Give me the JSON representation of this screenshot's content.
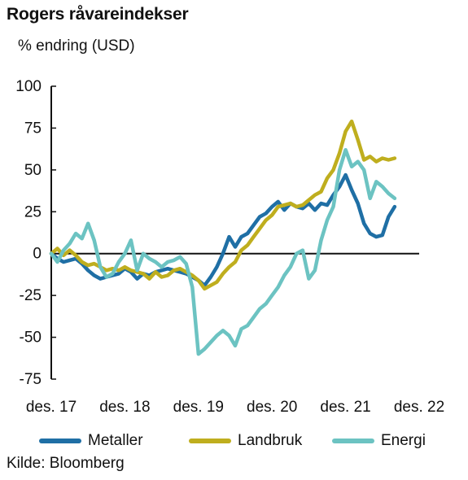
{
  "title": "Rogers råvareindekser",
  "unit_label": "% endring (USD)",
  "source": "Kilde: Bloomberg",
  "chart_data": {
    "type": "line",
    "title": "Rogers råvareindekser",
    "ylabel": "% endring (USD)",
    "xlabel": "",
    "ylim": [
      -75,
      100
    ],
    "yticks": [
      100,
      75,
      50,
      25,
      0,
      -25,
      -50,
      -75
    ],
    "xlim": [
      0,
      60
    ],
    "xticks": [
      {
        "x": 0,
        "label": "des. 17"
      },
      {
        "x": 12,
        "label": "des. 18"
      },
      {
        "x": 24,
        "label": "des. 19"
      },
      {
        "x": 36,
        "label": "des. 20"
      },
      {
        "x": 48,
        "label": "des. 21"
      },
      {
        "x": 60,
        "label": "des. 22"
      }
    ],
    "grid": false,
    "legend_position": "bottom",
    "series": [
      {
        "name": "Metaller",
        "color": "#1f6fa5",
        "values": [
          0,
          -3,
          -5,
          -4,
          -3,
          -6,
          -10,
          -13,
          -15,
          -14,
          -13,
          -12,
          -9,
          -11,
          -15,
          -12,
          -13,
          -11,
          -10,
          -9,
          -10,
          -11,
          -12,
          -14,
          -16,
          -19,
          -14,
          -8,
          0,
          10,
          4,
          10,
          12,
          17,
          22,
          24,
          28,
          31,
          26,
          30,
          28,
          27,
          30,
          26,
          30,
          29,
          35,
          40,
          47,
          38,
          30,
          18,
          12,
          10,
          11,
          22,
          28
        ],
        "x_start": 0,
        "x_step": 1
      },
      {
        "name": "Landbruk",
        "color": "#bfae1e",
        "values": [
          0,
          3,
          -1,
          2,
          -1,
          -5,
          -7,
          -6,
          -8,
          -10,
          -9,
          -10,
          -8,
          -10,
          -11,
          -12,
          -15,
          -11,
          -14,
          -13,
          -10,
          -9,
          -11,
          -13,
          -16,
          -21,
          -19,
          -17,
          -12,
          -8,
          -5,
          2,
          5,
          10,
          15,
          20,
          23,
          28,
          29,
          30,
          28,
          29,
          32,
          35,
          37,
          45,
          50,
          60,
          73,
          79,
          68,
          56,
          58,
          55,
          57,
          56,
          57
        ],
        "x_start": 0,
        "x_step": 1
      },
      {
        "name": "Energi",
        "color": "#6cc3c2",
        "values": [
          0,
          -5,
          2,
          6,
          12,
          9,
          18,
          8,
          -8,
          -14,
          -12,
          -5,
          0,
          8,
          -10,
          0,
          -3,
          -5,
          -8,
          -5,
          -4,
          -2,
          -6,
          -20,
          -60,
          -57,
          -53,
          -49,
          -46,
          -49,
          -55,
          -45,
          -43,
          -38,
          -33,
          -30,
          -25,
          -20,
          -13,
          -8,
          0,
          2,
          -15,
          -10,
          8,
          20,
          28,
          50,
          62,
          52,
          55,
          50,
          33,
          43,
          40,
          36,
          33
        ],
        "x_start": 0,
        "x_step": 1
      }
    ]
  }
}
